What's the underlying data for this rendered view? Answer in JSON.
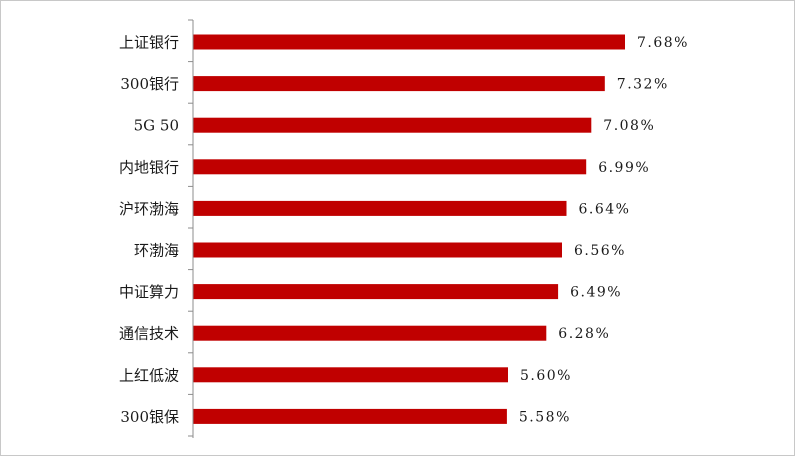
{
  "chart_data": {
    "type": "bar",
    "orientation": "horizontal",
    "title": "",
    "xlabel": "",
    "ylabel": "",
    "categories": [
      "上证银行",
      "300银行",
      "5G 50",
      "内地银行",
      "沪环渤海",
      "环渤海",
      "中证算力",
      "通信技术",
      "上红低波",
      "300银保"
    ],
    "values": [
      7.68,
      7.32,
      7.08,
      6.99,
      6.64,
      6.56,
      6.49,
      6.28,
      5.6,
      5.58
    ],
    "value_labels": [
      "7.68%",
      "7.32%",
      "7.08%",
      "6.99%",
      "6.64%",
      "6.56%",
      "6.49%",
      "6.28%",
      "5.60%",
      "5.58%"
    ],
    "unit": "%",
    "xlim": [
      0,
      10
    ],
    "grid": false,
    "legend": "none",
    "bar_color": "#c00000",
    "axis_color": "#8c8c8c"
  }
}
